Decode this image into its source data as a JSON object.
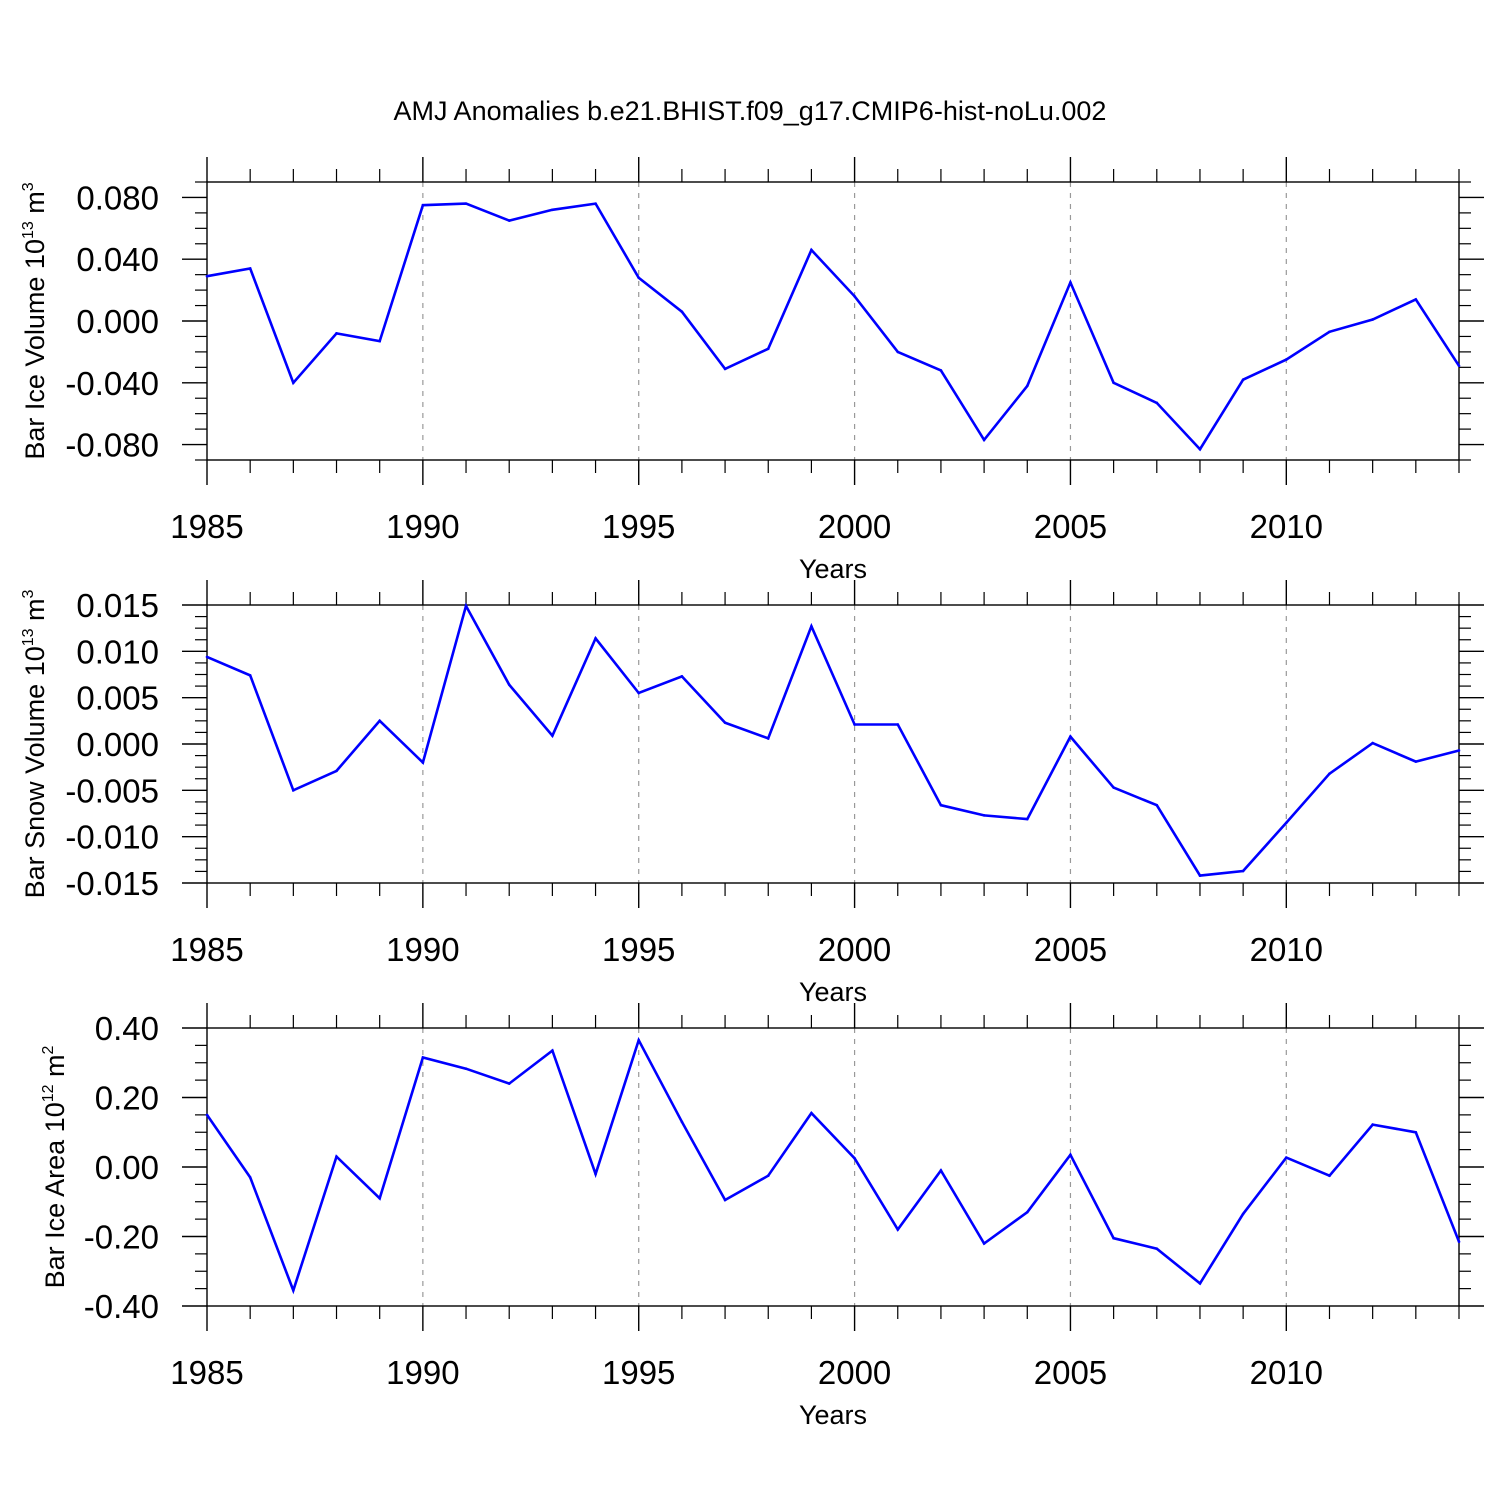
{
  "title": "AMJ Anomalies b.e21.BHIST.f09_g17.CMIP6-hist-noLu.002",
  "colors": {
    "line": "#0000ff",
    "axis": "#000000",
    "grid": "#999999"
  },
  "chart_data": [
    {
      "type": "line",
      "id": "ice-volume",
      "ylabel": {
        "main": "Bar Ice Volume 10",
        "sup": "13",
        "unit": " m",
        "unit_sup": "3"
      },
      "xlabel": "Years",
      "xlim": [
        1985,
        2014
      ],
      "ylim": [
        -0.09,
        0.09
      ],
      "xticks": [
        1985,
        1990,
        1995,
        2000,
        2005,
        2010
      ],
      "xtick_labels": [
        "1985",
        "1990",
        "1995",
        "2000",
        "2005",
        "2010"
      ],
      "yticks": [
        0.08,
        0.04,
        0.0,
        -0.04,
        -0.08
      ],
      "ytick_labels": [
        "0.080",
        "0.040",
        "0.000",
        "-0.040",
        "-0.080"
      ],
      "grid": "dashed vertical at 1990, 1995, 2000, 2005, 2010",
      "x": [
        1985,
        1986,
        1987,
        1988,
        1989,
        1990,
        1991,
        1992,
        1993,
        1994,
        1995,
        1996,
        1997,
        1998,
        1999,
        2000,
        2001,
        2002,
        2003,
        2004,
        2005,
        2006,
        2007,
        2008,
        2009,
        2010,
        2011,
        2012,
        2013,
        2014
      ],
      "y": [
        0.029,
        0.034,
        -0.04,
        -0.008,
        -0.013,
        0.075,
        0.076,
        0.065,
        0.072,
        0.076,
        0.028,
        0.006,
        -0.031,
        -0.018,
        0.046,
        0.016,
        -0.02,
        -0.032,
        -0.077,
        -0.042,
        0.025,
        -0.04,
        -0.053,
        -0.083,
        -0.038,
        -0.025,
        -0.007,
        0.001,
        0.014,
        -0.029
      ]
    },
    {
      "type": "line",
      "id": "snow-volume",
      "ylabel": {
        "main": "Bar Snow Volume 10",
        "sup": "13",
        "unit": " m",
        "unit_sup": "3"
      },
      "xlabel": "Years",
      "xlim": [
        1985,
        2014
      ],
      "ylim": [
        -0.015,
        0.015
      ],
      "xticks": [
        1985,
        1990,
        1995,
        2000,
        2005,
        2010
      ],
      "xtick_labels": [
        "1985",
        "1990",
        "1995",
        "2000",
        "2005",
        "2010"
      ],
      "yticks": [
        0.015,
        0.01,
        0.005,
        0.0,
        -0.005,
        -0.01,
        -0.015
      ],
      "ytick_labels": [
        "0.015",
        "0.010",
        "0.005",
        "0.000",
        "-0.005",
        "-0.010",
        "-0.015"
      ],
      "grid": "dashed vertical at 1990, 1995, 2000, 2005, 2010",
      "x": [
        1985,
        1986,
        1987,
        1988,
        1989,
        1990,
        1991,
        1992,
        1993,
        1994,
        1995,
        1996,
        1997,
        1998,
        1999,
        2000,
        2001,
        2002,
        2003,
        2004,
        2005,
        2006,
        2007,
        2008,
        2009,
        2010,
        2011,
        2012,
        2013,
        2014
      ],
      "y": [
        0.0094,
        0.0074,
        -0.005,
        -0.0029,
        0.0025,
        -0.002,
        0.0149,
        0.0064,
        0.0009,
        0.0114,
        0.0055,
        0.0073,
        0.0023,
        0.0006,
        0.0127,
        0.0021,
        0.0021,
        -0.0066,
        -0.0077,
        -0.0081,
        0.0008,
        -0.0047,
        -0.0066,
        -0.0142,
        -0.0137,
        -0.0085,
        -0.0032,
        0.0001,
        -0.0019,
        -0.0007
      ]
    },
    {
      "type": "line",
      "id": "ice-area",
      "ylabel": {
        "main": "Bar Ice Area 10",
        "sup": "12",
        "unit": " m",
        "unit_sup": "2"
      },
      "xlabel": "Years",
      "xlim": [
        1985,
        2014
      ],
      "ylim": [
        -0.4,
        0.4
      ],
      "xticks": [
        1985,
        1990,
        1995,
        2000,
        2005,
        2010
      ],
      "xtick_labels": [
        "1985",
        "1990",
        "1995",
        "2000",
        "2005",
        "2010"
      ],
      "yticks": [
        0.4,
        0.2,
        0.0,
        -0.2,
        -0.4
      ],
      "ytick_labels": [
        "0.40",
        "0.20",
        "0.00",
        "-0.20",
        "-0.40"
      ],
      "grid": "dashed vertical at 1990, 1995, 2000, 2005, 2010",
      "x": [
        1985,
        1986,
        1987,
        1988,
        1989,
        1990,
        1991,
        1992,
        1993,
        1994,
        1995,
        1996,
        1997,
        1998,
        1999,
        2000,
        2001,
        2002,
        2003,
        2004,
        2005,
        2006,
        2007,
        2008,
        2009,
        2010,
        2011,
        2012,
        2013,
        2014
      ],
      "y": [
        0.15,
        -0.03,
        -0.355,
        0.03,
        -0.09,
        0.315,
        0.283,
        0.24,
        0.335,
        -0.02,
        0.365,
        0.13,
        -0.095,
        -0.025,
        0.155,
        0.025,
        -0.18,
        -0.01,
        -0.22,
        -0.13,
        0.035,
        -0.205,
        -0.235,
        -0.335,
        -0.135,
        0.027,
        -0.025,
        0.122,
        0.1,
        -0.215
      ]
    }
  ]
}
